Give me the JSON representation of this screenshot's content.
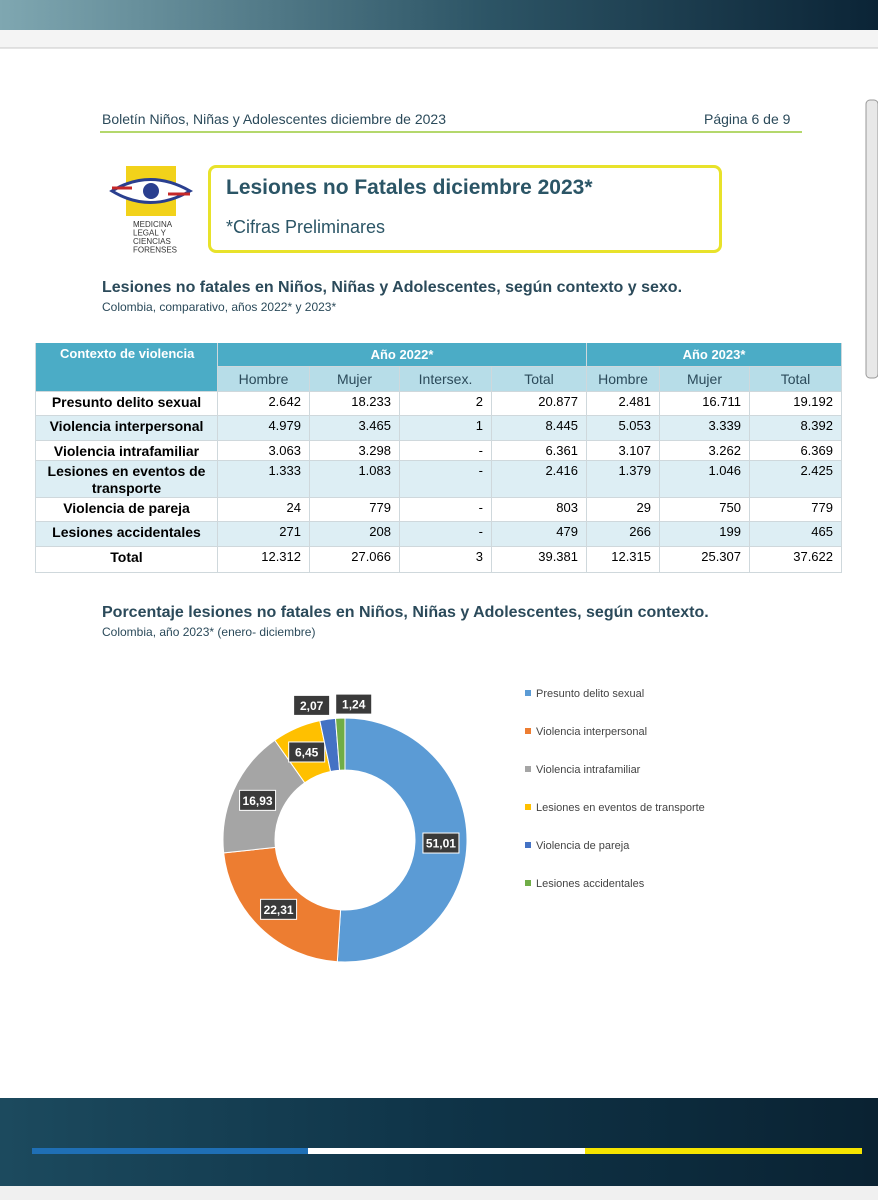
{
  "header": {
    "left": "Boletín Niños, Niñas y Adolescentes diciembre de 2023",
    "right": "Página 6 de 9"
  },
  "logo": {
    "lines": [
      "MEDICINA",
      "LEGAL Y",
      "CIENCIAS",
      "FORENSES"
    ]
  },
  "banner": {
    "title": "Lesiones no Fatales diciembre 2023*",
    "subtitle": "*Cifras Preliminares"
  },
  "table_section": {
    "title": "Lesiones no fatales en Niños, Niñas y Adolescentes, según contexto y sexo.",
    "subtitle": "Colombia, comparativo, años 2022* y 2023*"
  },
  "table": {
    "group_header": [
      "Contexto de violencia",
      "Año 2022*",
      "Año 2023*"
    ],
    "columns": [
      "Hombre",
      "Mujer",
      "Intersex.",
      "Total",
      "Hombre",
      "Mujer",
      "Total"
    ],
    "rows": [
      [
        "Presunto delito sexual",
        "2.642",
        "18.233",
        "2",
        "20.877",
        "2.481",
        "16.711",
        "19.192"
      ],
      [
        "Violencia interpersonal",
        "4.979",
        "3.465",
        "1",
        "8.445",
        "5.053",
        "3.339",
        "8.392"
      ],
      [
        "Violencia intrafamiliar",
        "3.063",
        "3.298",
        "-",
        "6.361",
        "3.107",
        "3.262",
        "6.369"
      ],
      [
        "Lesiones en eventos de transporte",
        "1.333",
        "1.083",
        "-",
        "2.416",
        "1.379",
        "1.046",
        "2.425"
      ],
      [
        "Violencia de pareja",
        "24",
        "779",
        "-",
        "803",
        "29",
        "750",
        "779"
      ],
      [
        "Lesiones accidentales",
        "271",
        "208",
        "-",
        "479",
        "266",
        "199",
        "465"
      ],
      [
        "Total",
        "12.312",
        "27.066",
        "3",
        "39.381",
        "12.315",
        "25.307",
        "37.622"
      ]
    ]
  },
  "chart_data": {
    "type": "donut",
    "title": "Porcentaje lesiones no fatales en Niños, Niñas y Adolescentes, según contexto.",
    "subtitle": "Colombia, año 2023* (enero- diciembre)",
    "categories": [
      "Presunto delito sexual",
      "Violencia interpersonal",
      "Violencia intrafamiliar",
      "Lesiones en eventos de transporte",
      "Violencia de pareja",
      "Lesiones accidentales"
    ],
    "values": [
      51.01,
      22.31,
      16.93,
      6.45,
      2.07,
      1.24
    ],
    "value_labels": [
      "51,01",
      "22,31",
      "16,93",
      "6,45",
      "2,07",
      "1,24"
    ],
    "colors": [
      "#5b9bd5",
      "#ed7d31",
      "#a5a5a5",
      "#ffc000",
      "#4472c4",
      "#70ad47"
    ],
    "legend": "right"
  }
}
